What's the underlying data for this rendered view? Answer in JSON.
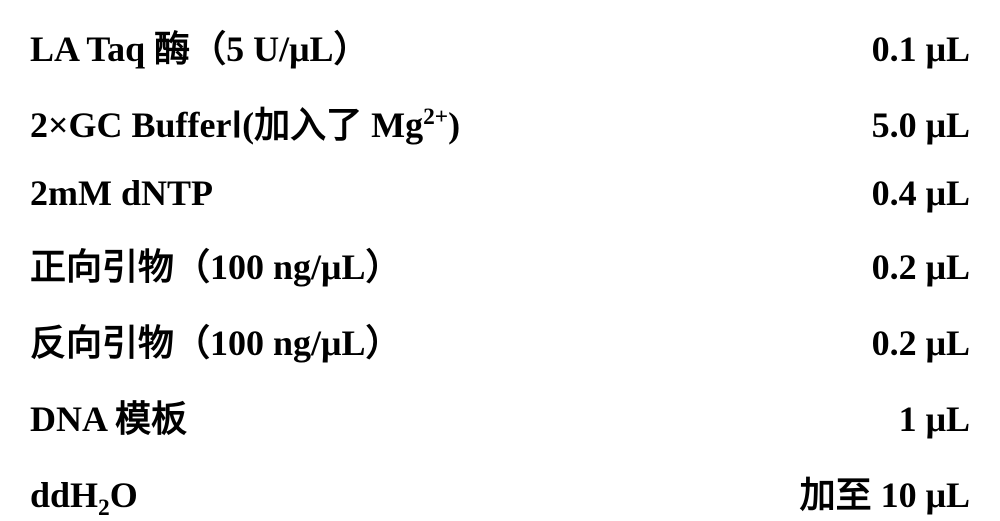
{
  "table": {
    "rows": [
      {
        "label_parts": [
          {
            "text": "LA Taq ",
            "type": "latin"
          },
          {
            "text": "酶（",
            "type": "cjk"
          },
          {
            "text": "5 U/μL",
            "type": "latin"
          },
          {
            "text": "）",
            "type": "cjk"
          }
        ],
        "value": "0.1 μL"
      },
      {
        "label_parts": [
          {
            "text": "2×GC Buffer",
            "type": "latin"
          },
          {
            "text": "Ⅰ",
            "type": "cjk"
          },
          {
            "text": "(",
            "type": "latin"
          },
          {
            "text": "加入了 ",
            "type": "cjk"
          },
          {
            "text": "Mg",
            "type": "latin"
          },
          {
            "text": "2+",
            "type": "sup"
          },
          {
            "text": ")",
            "type": "latin"
          }
        ],
        "value": "5.0 μL"
      },
      {
        "label_parts": [
          {
            "text": "2mM dNTP",
            "type": "latin"
          }
        ],
        "value": "0.4 μL"
      },
      {
        "label_parts": [
          {
            "text": "正向引物（",
            "type": "cjk"
          },
          {
            "text": "100 ng/μL",
            "type": "latin"
          },
          {
            "text": "）",
            "type": "cjk"
          }
        ],
        "value": "0.2 μL"
      },
      {
        "label_parts": [
          {
            "text": "反向引物（",
            "type": "cjk"
          },
          {
            "text": "100 ng/μL",
            "type": "latin"
          },
          {
            "text": "）",
            "type": "cjk"
          }
        ],
        "value": "0.2 μL"
      },
      {
        "label_parts": [
          {
            "text": "DNA ",
            "type": "latin"
          },
          {
            "text": "模板",
            "type": "cjk"
          }
        ],
        "value": "1 μL"
      },
      {
        "label_parts": [
          {
            "text": "ddH",
            "type": "latin"
          },
          {
            "text": "2",
            "type": "sub"
          },
          {
            "text": "O",
            "type": "latin"
          }
        ],
        "value_parts": [
          {
            "text": "加至 ",
            "type": "cjk"
          },
          {
            "text": "10 μL",
            "type": "latin"
          }
        ]
      }
    ],
    "styling": {
      "font_size": 36,
      "font_weight": "bold",
      "text_color": "#000000",
      "background_color": "#ffffff",
      "row_spacing": 24,
      "latin_font": "Times New Roman",
      "cjk_font": "SimSun"
    }
  }
}
